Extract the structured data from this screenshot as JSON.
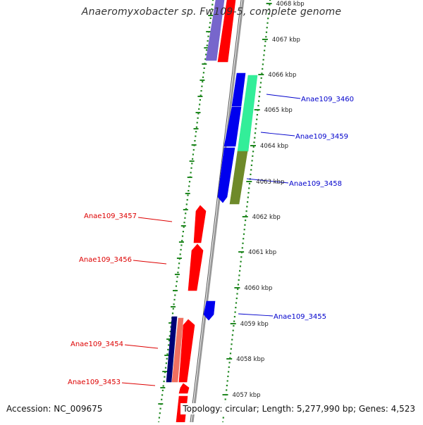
{
  "title": "Anaeromyxobacter sp. Fw109-5, complete genome",
  "accession": "Accession: NC_009675",
  "summary": "Topology: circular; Length: 5,277,990 bp; Genes: 4,523",
  "kbp_labels": [
    "4068 kbp",
    "4067 kbp",
    "4066 kbp",
    "4065 kbp",
    "4064 kbp",
    "4063 kbp",
    "4062 kbp",
    "4061 kbp",
    "4060 kbp",
    "4059 kbp",
    "4058 kbp",
    "4057 kbp"
  ],
  "genes": [
    {
      "label": "Anae109_3460",
      "color": "#0000cc",
      "strand": "plus"
    },
    {
      "label": "Anae109_3459",
      "color": "#0000cc",
      "strand": "plus"
    },
    {
      "label": "Anae109_3458",
      "color": "#0000cc",
      "strand": "plus"
    },
    {
      "label": "Anae109_3457",
      "color": "#dd0000",
      "strand": "minus"
    },
    {
      "label": "Anae109_3456",
      "color": "#dd0000",
      "strand": "minus"
    },
    {
      "label": "Anae109_3455",
      "color": "#0000cc",
      "strand": "plus"
    },
    {
      "label": "Anae109_3454",
      "color": "#dd0000",
      "strand": "minus"
    },
    {
      "label": "Anae109_3453",
      "color": "#dd0000",
      "strand": "minus"
    }
  ],
  "colors": {
    "cds_minus": "#ff0000",
    "cds_plus": "#0000ee",
    "backbone": "#888888",
    "scale_dots": "#228822",
    "feature_teal": "#33ee99",
    "feature_olive": "#6e8a2a",
    "feature_lavender": "#7766cc",
    "feature_navy": "#000077",
    "feature_salmon": "#f07060"
  }
}
